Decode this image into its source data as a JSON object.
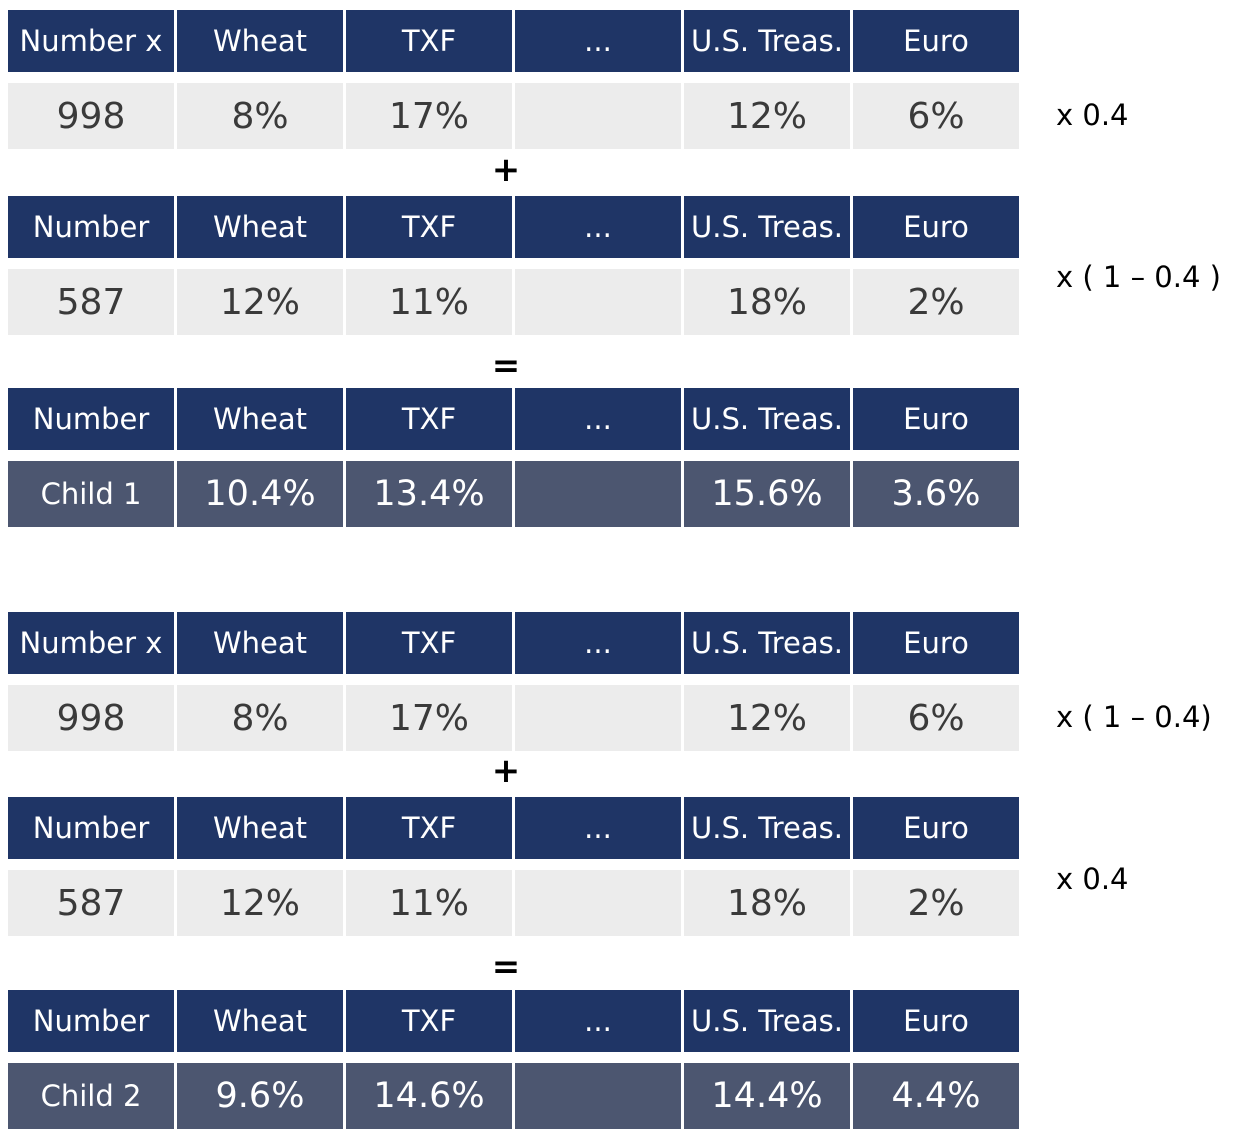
{
  "columns": [
    "Number x",
    "Wheat",
    "TXF",
    "...",
    "U.S. Treas.",
    "Euro"
  ],
  "columns_alt": [
    "Number",
    "Wheat",
    "TXF",
    "...",
    "U.S. Treas.",
    "Euro"
  ],
  "parent_a": [
    "998",
    "8%",
    "17%",
    "",
    "12%",
    "6%"
  ],
  "parent_b": [
    "587",
    "12%",
    "11%",
    "",
    "18%",
    "2%"
  ],
  "plus": "+",
  "equals": "=",
  "child1": {
    "values": [
      "Child 1",
      "10.4%",
      "13.4%",
      "",
      "15.6%",
      "3.6%"
    ],
    "weight_a": "x 0.4",
    "weight_b": "x ( 1 – 0.4 )"
  },
  "child2": {
    "values": [
      "Child 2",
      "9.6%",
      "14.6%",
      "",
      "14.4%",
      "4.4%"
    ],
    "weight_a": "x ( 1 – 0.4)",
    "weight_b": "x  0.4"
  }
}
